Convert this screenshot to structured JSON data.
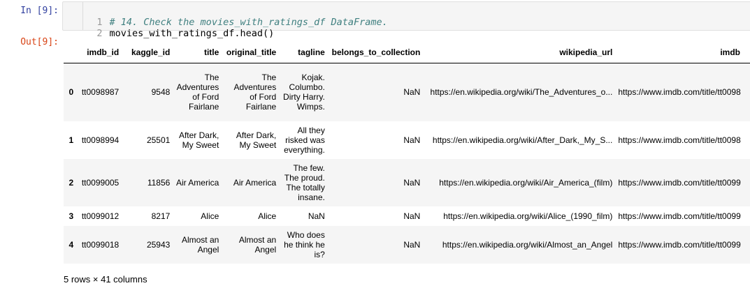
{
  "cell": {
    "in_prompt": "In [9]:",
    "out_prompt": "Out[9]:",
    "code_lines": [
      {
        "no": "1",
        "text": "# 14. Check the movies_with_ratings_df DataFrame."
      },
      {
        "no": "2",
        "text": "movies_with_ratings_df.head()"
      }
    ]
  },
  "table": {
    "columns": [
      "imdb_id",
      "kaggle_id",
      "title",
      "original_title",
      "tagline",
      "belongs_to_collection",
      "wikipedia_url",
      "imdb"
    ],
    "rows": [
      {
        "idx": "0",
        "cells": [
          "tt0098987",
          "9548",
          "The Adventures of Ford Fairlane",
          "The Adventures of Ford Fairlane",
          "Kojak. Columbo. Dirty Harry. Wimps.",
          "NaN",
          "https://en.wikipedia.org/wiki/The_Adventures_o...",
          "https://www.imdb.com/title/tt0098"
        ]
      },
      {
        "idx": "1",
        "cells": [
          "tt0098994",
          "25501",
          "After Dark, My Sweet",
          "After Dark, My Sweet",
          "All they risked was everything.",
          "NaN",
          "https://en.wikipedia.org/wiki/After_Dark,_My_S...",
          "https://www.imdb.com/title/tt0098"
        ]
      },
      {
        "idx": "2",
        "cells": [
          "tt0099005",
          "11856",
          "Air America",
          "Air America",
          "The few. The proud. The totally insane.",
          "NaN",
          "https://en.wikipedia.org/wiki/Air_America_(film)",
          "https://www.imdb.com/title/tt0099"
        ]
      },
      {
        "idx": "3",
        "cells": [
          "tt0099012",
          "8217",
          "Alice",
          "Alice",
          "NaN",
          "NaN",
          "https://en.wikipedia.org/wiki/Alice_(1990_film)",
          "https://www.imdb.com/title/tt0099"
        ]
      },
      {
        "idx": "4",
        "cells": [
          "tt0099018",
          "25943",
          "Almost an Angel",
          "Almost an Angel",
          "Who does he think he is?",
          "NaN",
          "https://en.wikipedia.org/wiki/Almost_an_Angel",
          "https://www.imdb.com/title/tt0099"
        ]
      }
    ],
    "shape": "5 rows × 41 columns"
  }
}
